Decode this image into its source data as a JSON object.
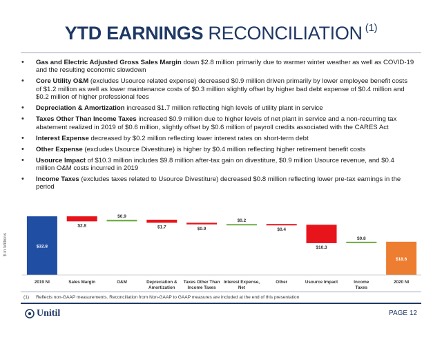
{
  "header": {
    "title_bold": "YTD EARNINGS",
    "title_rest": " RECONCILIATION",
    "title_sup": "(1)"
  },
  "bullets": [
    {
      "bold": "Gas and Electric Adjusted Gross Sales Margin",
      "text": " down $2.8 million primarily due to warmer winter weather as well as COVID-19 and the resulting economic slowdown"
    },
    {
      "bold": "Core Utility O&M",
      "text": " (excludes Usource related expense) decreased $0.9 million driven primarily by lower employee benefit costs of $1.2 million as well as lower maintenance costs of $0.3 million slightly offset by higher bad debt expense of $0.4 million and $0.2 million of higher professional fees"
    },
    {
      "bold": "Depreciation & Amortization",
      "text": " increased $1.7 million reflecting high levels of utility plant in service"
    },
    {
      "bold": "Taxes Other Than Income Taxes",
      "text": " increased $0.9 million due to higher levels of net plant in service and a non-recurring tax abatement realized in 2019 of $0.6 million, slightly offset by $0.6 million of payroll credits associated with the CARES Act"
    },
    {
      "bold": "Interest Expense",
      "text": " decreased by $0.2 million reflecting lower interest rates on short-term debt"
    },
    {
      "bold": "Other Expense",
      "text": " (excludes Usource Divestiture) is higher by $0.4 million reflecting higher retirement benefit costs"
    },
    {
      "bold": "Usource Impact",
      "text": " of $10.3 million includes $9.8 million after-tax gain on divestiture, $0.9 million Usource revenue, and $0.4 million O&M costs incurred in 2019"
    },
    {
      "bold": "Income Taxes",
      "text": " (excludes taxes related to Usource Divestiture) decreased $0.8 million reflecting lower pre-tax earnings in the period"
    }
  ],
  "chart_data": {
    "type": "waterfall",
    "ylabel": "$ in Millions",
    "categories": [
      [
        "2019 NI"
      ],
      [
        "Sales Margin"
      ],
      [
        "O&M"
      ],
      [
        "Depreciation &",
        "Amortization"
      ],
      [
        "Taxes Other Than",
        "Income Taxes"
      ],
      [
        "Interest Expense,",
        "Net"
      ],
      [
        "Other"
      ],
      [
        "Usource Impact"
      ],
      [
        "Income",
        "Taxes"
      ],
      [
        "2020 NI"
      ]
    ],
    "values": [
      32.8,
      -2.8,
      0.9,
      -1.7,
      -0.9,
      0.2,
      -0.4,
      -10.3,
      0.8,
      18.6
    ],
    "labels": [
      "$32.8",
      "$2.8",
      "$0.9",
      "$1.7",
      "$0.9",
      "$0.2",
      "$0.4",
      "$10.3",
      "$0.8",
      "$18.6"
    ],
    "kinds": [
      "total",
      "delta",
      "delta",
      "delta",
      "delta",
      "delta",
      "delta",
      "delta",
      "delta",
      "total"
    ],
    "ylim": [
      0,
      34
    ],
    "colors": {
      "start": "#1f4ea3",
      "negative": "#e8141b",
      "positive": "#70ad47",
      "end": "#ed7d31"
    }
  },
  "footnote": {
    "num": "(1)",
    "text": "Reflects non-GAAP measurements. Reconciliation from Non-GAAP to GAAP measures are included at the end of this presentation"
  },
  "footer": {
    "logo_text": "Unitil",
    "page": "PAGE 12"
  }
}
